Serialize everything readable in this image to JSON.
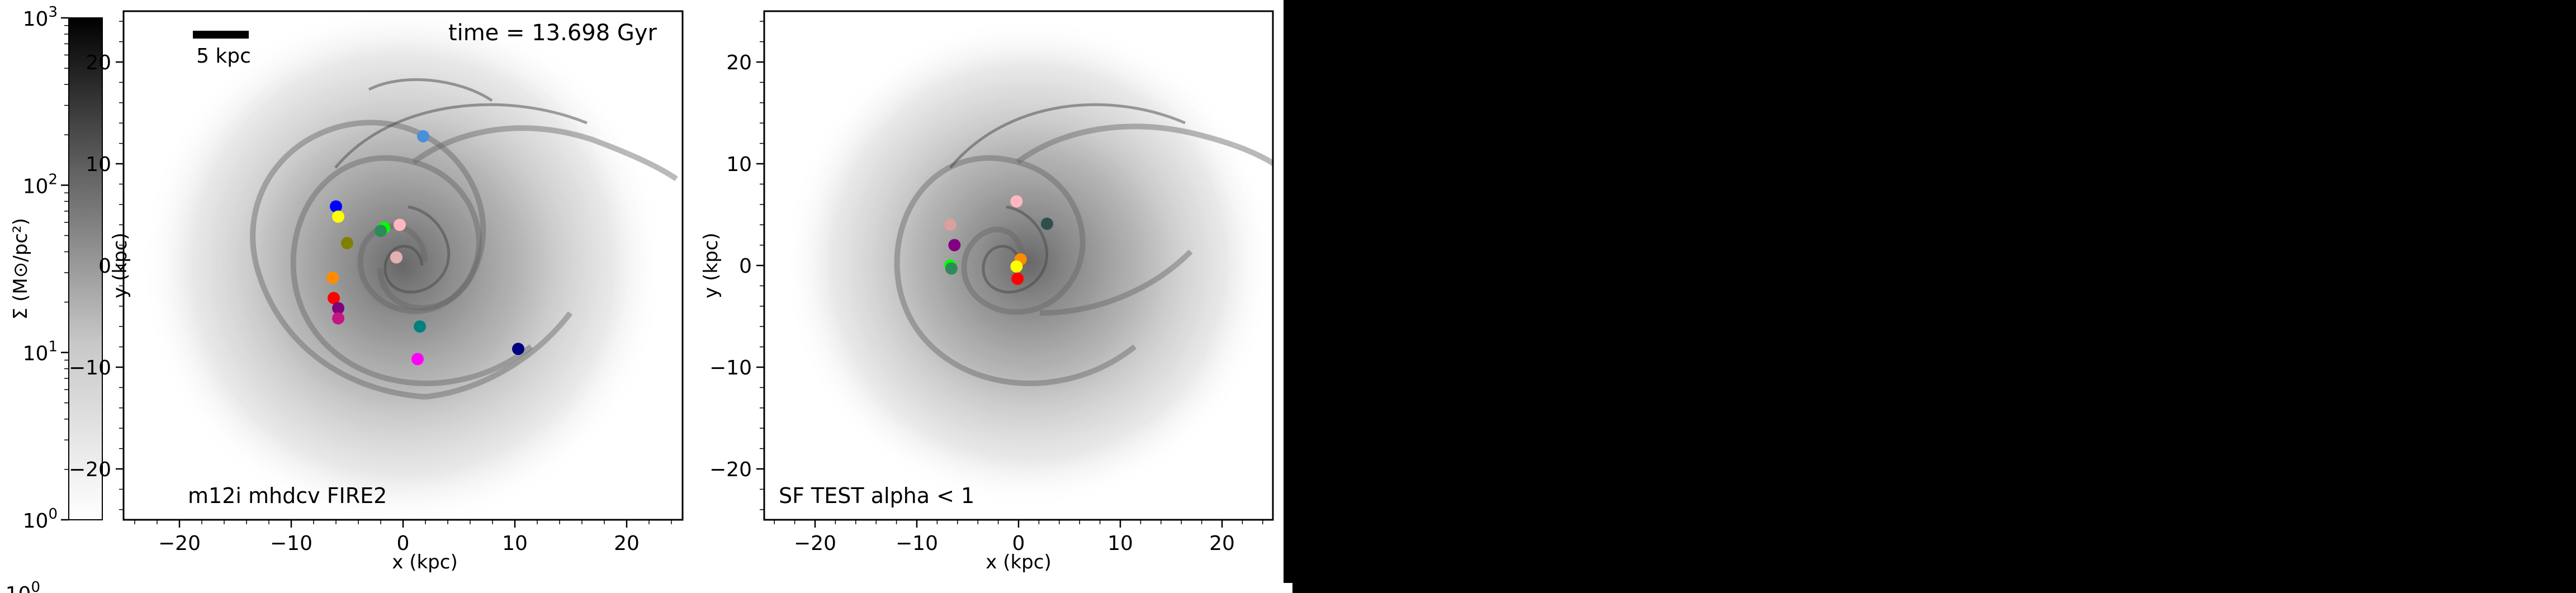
{
  "colors": {
    "background": "#000000",
    "figure": "#ffffff",
    "colormap": [
      "#ffffff",
      "#000000"
    ]
  },
  "colorbar": {
    "label": "Σ (M⊙/pc²)",
    "scale": "log",
    "range": [
      1,
      1000
    ],
    "ticks": [
      {
        "value": 1,
        "base": "10",
        "exp": "0"
      },
      {
        "value": 10,
        "base": "10",
        "exp": "1"
      },
      {
        "value": 100,
        "base": "10",
        "exp": "2"
      },
      {
        "value": 1000,
        "base": "10",
        "exp": "3"
      }
    ],
    "cutoff_label": {
      "base": "10",
      "exp": "0"
    }
  },
  "chart_data": [
    {
      "type": "scatter",
      "annotation": "m12i mhdcv FIRE2",
      "time_label": "time = 13.698 Gyr",
      "scale_bar": {
        "label": "5 kpc",
        "length": 5
      },
      "xlabel": "x (kpc)",
      "ylabel": "y (kpc)",
      "xlim": [
        -25,
        25
      ],
      "ylim": [
        -25,
        25
      ],
      "xticks": [
        -20,
        -10,
        0,
        10,
        20
      ],
      "yticks": [
        -20,
        -10,
        0,
        10,
        20
      ],
      "points": [
        {
          "x": 1.8,
          "y": 12.7,
          "color": "#4a90d9"
        },
        {
          "x": -6.0,
          "y": 5.8,
          "color": "#0000ff"
        },
        {
          "x": -5.8,
          "y": 4.8,
          "color": "#ffff00"
        },
        {
          "x": -1.7,
          "y": 3.7,
          "color": "#00ff00"
        },
        {
          "x": -2.0,
          "y": 3.4,
          "color": "#2e8b57"
        },
        {
          "x": -0.3,
          "y": 4.0,
          "color": "#ffb6c1"
        },
        {
          "x": -5.0,
          "y": 2.2,
          "color": "#808000"
        },
        {
          "x": -0.6,
          "y": 0.8,
          "color": "#e6b0b0"
        },
        {
          "x": -6.3,
          "y": -1.2,
          "color": "#ff8c00"
        },
        {
          "x": -6.2,
          "y": -3.2,
          "color": "#ff0000"
        },
        {
          "x": -5.8,
          "y": -4.2,
          "color": "#800080"
        },
        {
          "x": -5.8,
          "y": -5.2,
          "color": "#c71585"
        },
        {
          "x": 1.5,
          "y": -6.0,
          "color": "#008080"
        },
        {
          "x": 10.3,
          "y": -8.2,
          "color": "#000080"
        },
        {
          "x": 1.3,
          "y": -9.2,
          "color": "#ff00ff"
        }
      ]
    },
    {
      "type": "scatter",
      "annotation": "SF TEST alpha < 1",
      "xlabel": "x (kpc)",
      "ylabel": "y (kpc)",
      "xlim": [
        -25,
        25
      ],
      "ylim": [
        -25,
        25
      ],
      "xticks": [
        -20,
        -10,
        0,
        10,
        20
      ],
      "yticks": [
        -20,
        -10,
        0,
        10,
        20
      ],
      "points": [
        {
          "x": -6.7,
          "y": 4.0,
          "color": "#d9a0a0"
        },
        {
          "x": -0.2,
          "y": 6.3,
          "color": "#ffb6c1"
        },
        {
          "x": 2.8,
          "y": 4.1,
          "color": "#2f4f4f"
        },
        {
          "x": -6.3,
          "y": 2.0,
          "color": "#800080"
        },
        {
          "x": -6.7,
          "y": 0.0,
          "color": "#00ff00"
        },
        {
          "x": -6.6,
          "y": -0.3,
          "color": "#2e8b57"
        },
        {
          "x": 0.2,
          "y": 0.6,
          "color": "#ff8c00"
        },
        {
          "x": -0.2,
          "y": -0.1,
          "color": "#ffff00"
        },
        {
          "x": -0.1,
          "y": -1.3,
          "color": "#ff0000"
        }
      ]
    }
  ]
}
